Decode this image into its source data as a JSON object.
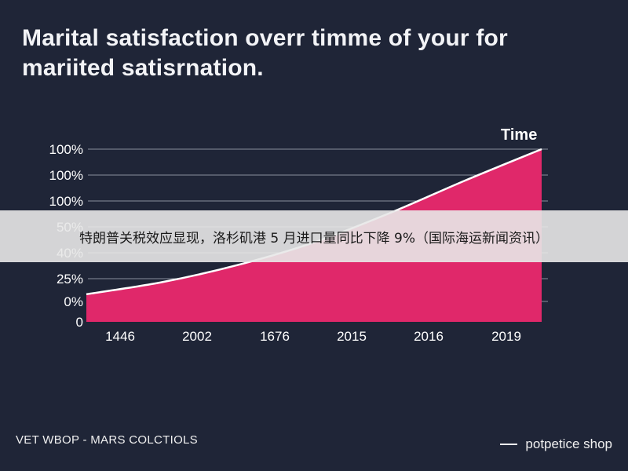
{
  "title": "Marital satisfaction overr timme of your for mariited satisrnation.",
  "banner": {
    "text": "特朗普关税效应显现，洛杉矶港 5 月进口量同比下降 9%（国际海运新闻资讯）"
  },
  "footer": {
    "left": "VET WBOP - MARS COLCTIOLS",
    "right": "potpetice shop"
  },
  "colors": {
    "background": "#1f2537",
    "area_fill": "#e0286a",
    "grid": "#8a8f9c",
    "line": "#ffffff"
  },
  "chart_data": {
    "type": "area",
    "title": "Marital satisfaction overr timme of your for mariited satisrnation.",
    "xlabel": "Time",
    "ylabel": "",
    "y_tick_labels": [
      "0",
      "0%",
      "25%",
      "40%",
      "50%",
      "100%",
      "100%",
      "100%"
    ],
    "x_tick_labels": [
      "1446",
      "2002",
      "1676",
      "2015",
      "2016",
      "2019"
    ],
    "series": [
      {
        "values": [
          0.16,
          0.23,
          0.33,
          0.46,
          0.63,
          0.82,
          1.0
        ]
      }
    ],
    "ylim": [
      0,
      1
    ],
    "grid": true,
    "legend": "none"
  }
}
